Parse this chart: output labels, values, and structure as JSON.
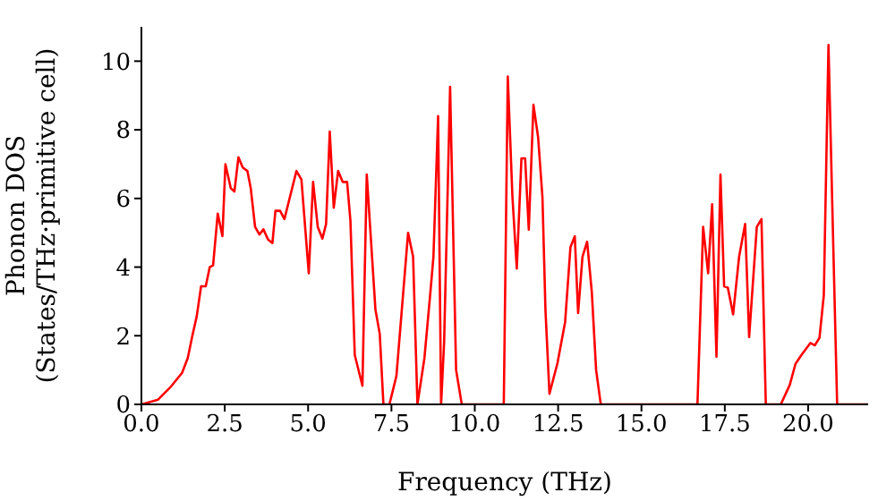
{
  "chart_data": {
    "type": "line",
    "xlabel": "Frequency (THz)",
    "ylabel": "Phonon DOS\n(States/THz·primitive cell)",
    "xlim": [
      0,
      21.8
    ],
    "ylim": [
      0,
      11
    ],
    "xticks": [
      {
        "value": 0,
        "label": "0.0"
      },
      {
        "value": 2.5,
        "label": "2.5"
      },
      {
        "value": 5,
        "label": "5.0"
      },
      {
        "value": 7.5,
        "label": "7.5"
      },
      {
        "value": 10,
        "label": "10.0"
      },
      {
        "value": 12.5,
        "label": "12.5"
      },
      {
        "value": 15,
        "label": "15.0"
      },
      {
        "value": 17.5,
        "label": "17.5"
      },
      {
        "value": 20,
        "label": "20.0"
      }
    ],
    "yticks": [
      0,
      2,
      4,
      6,
      8,
      10
    ],
    "marker": "none",
    "line_style": "solid",
    "x": [
      0,
      0.5,
      0.86,
      1.22,
      1.39,
      1.52,
      1.66,
      1.79,
      1.93,
      2.05,
      2.15,
      2.29,
      2.43,
      2.52,
      2.68,
      2.79,
      2.91,
      3.04,
      3.18,
      3.28,
      3.41,
      3.54,
      3.66,
      3.8,
      3.93,
      4.02,
      4.16,
      4.29,
      4.47,
      4.65,
      4.8,
      5.02,
      5.15,
      5.29,
      5.43,
      5.54,
      5.65,
      5.77,
      5.9,
      6.04,
      6.17,
      6.27,
      6.4,
      6.63,
      6.76,
      7.02,
      7.15,
      7.26,
      7.44,
      7.65,
      8.0,
      8.15,
      8.28,
      8.49,
      8.67,
      8.76,
      8.9,
      8.99,
      9.08,
      9.26,
      9.44,
      9.61,
      10.87,
      10.99,
      11.13,
      11.26,
      11.4,
      11.51,
      11.62,
      11.76,
      11.9,
      12.03,
      12.12,
      12.24,
      12.48,
      12.71,
      12.87,
      13.0,
      13.1,
      13.23,
      13.37,
      13.51,
      13.64,
      13.78,
      16.68,
      16.85,
      17.0,
      17.12,
      17.25,
      17.37,
      17.48,
      17.59,
      17.75,
      17.93,
      18.11,
      18.23,
      18.46,
      18.6,
      18.73,
      19.18,
      19.45,
      19.62,
      19.8,
      20.07,
      20.2,
      20.34,
      20.47,
      20.61,
      20.74,
      20.87,
      21.8
    ],
    "series": [
      {
        "color": "#ff0000",
        "values": [
          0,
          0.14,
          0.49,
          0.92,
          1.35,
          1.96,
          2.57,
          3.44,
          3.44,
          4.0,
          4.05,
          5.56,
          4.9,
          7.0,
          6.3,
          6.2,
          7.2,
          6.9,
          6.8,
          6.3,
          5.17,
          4.95,
          5.1,
          4.8,
          4.7,
          5.64,
          5.64,
          5.4,
          6.1,
          6.8,
          6.55,
          3.82,
          6.48,
          5.17,
          4.83,
          5.26,
          7.95,
          5.73,
          6.8,
          6.48,
          6.48,
          5.35,
          1.44,
          0.54,
          6.7,
          2.76,
          2.05,
          0,
          0,
          0.83,
          5.0,
          4.3,
          0,
          1.35,
          3.28,
          4.3,
          8.4,
          0,
          1.8,
          9.25,
          1.0,
          0,
          0,
          9.55,
          6.04,
          3.96,
          7.17,
          7.17,
          5.09,
          8.73,
          7.78,
          6.04,
          2.76,
          0.31,
          1.2,
          2.4,
          4.58,
          4.9,
          2.66,
          4.3,
          4.74,
          3.28,
          1.0,
          0,
          0,
          5.17,
          3.82,
          5.83,
          1.39,
          6.7,
          3.44,
          3.4,
          2.62,
          4.31,
          5.26,
          1.96,
          5.17,
          5.4,
          0,
          0,
          0.57,
          1.18,
          1.44,
          1.79,
          1.72,
          1.94,
          3.18,
          10.47,
          5.17,
          0,
          0
        ]
      }
    ]
  }
}
